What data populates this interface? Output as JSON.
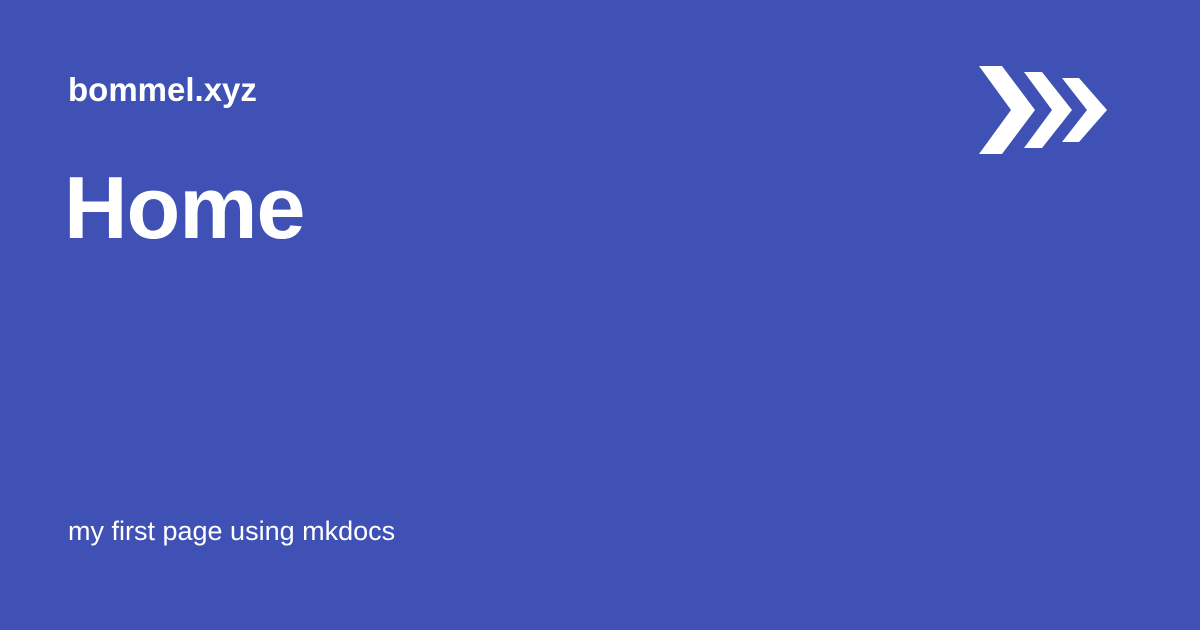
{
  "site": {
    "name": "bommel.xyz"
  },
  "page": {
    "title": "Home",
    "description": "my first page using mkdocs"
  },
  "logo": {
    "icon": "triple-chevron-right-icon",
    "color": "#ffffff"
  },
  "colors": {
    "background": "#3f51b5",
    "text": "#ffffff"
  }
}
